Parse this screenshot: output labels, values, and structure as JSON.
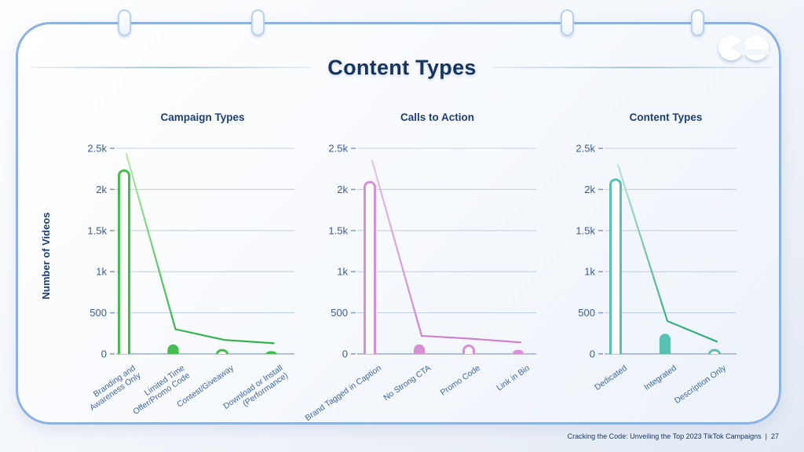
{
  "slide": {
    "title": "Content Types",
    "y_axis_label": "Number of Videos",
    "footer": {
      "text": "Cracking the Code: Unveiling the Top 2023 TikTok Campaigns",
      "separator": "|",
      "page": "27"
    }
  },
  "colors": {
    "panel_border": "#8db2e2",
    "title_navy": "#14355f",
    "chart_title_navy": "#1c3f77",
    "tick_label_blue": "#3a5c96",
    "category_label_blue": "#3f67a0",
    "gridline": "#c4d1e3",
    "axis": "#98aecf",
    "green": "#45bc4f",
    "pink": "#d98fd8",
    "teal": "#57c2b4"
  },
  "chart_data": [
    {
      "type": "bar",
      "title": "Campaign Types",
      "categories": [
        "Branding and Awareness Only",
        "Limited Time Offer/Promo Code",
        "Contest/Giveaway",
        "Download or Install (Performance)"
      ],
      "category_label_lines": [
        [
          "Branding and",
          "Awareness Only"
        ],
        [
          "Limited Time",
          "Offer/Promo Code"
        ],
        [
          "Contest/Giveaway"
        ],
        [
          "Download or Install",
          "(Performance)"
        ]
      ],
      "series": [
        {
          "name": "videos-bars",
          "type": "bar",
          "values": [
            2230,
            110,
            45,
            15
          ],
          "bar_styles": [
            "outline",
            "filled",
            "outline",
            "filled"
          ]
        },
        {
          "name": "trend-line",
          "type": "line",
          "values": [
            2430,
            300,
            170,
            130
          ]
        }
      ],
      "y_ticks": {
        "labels": [
          "2.5k",
          "2k",
          "1.5k",
          "1k",
          "500",
          "0"
        ],
        "values": [
          2500,
          2000,
          1500,
          1000,
          500,
          0
        ]
      },
      "ylim": [
        0,
        2500
      ],
      "grid": true,
      "color": "#45bc4f",
      "line_gradient": [
        "#b7e9a6",
        "#2eb14b"
      ]
    },
    {
      "type": "bar",
      "title": "Calls to Action",
      "categories": [
        "Brand Tagged in Caption",
        "No Strong CTA",
        "Promo Code",
        "Link in Bio"
      ],
      "category_label_lines": [
        [
          "Brand Tagged in Caption"
        ],
        [
          "No Strong CTA"
        ],
        [
          "Promo Code"
        ],
        [
          "Link in Bio"
        ]
      ],
      "series": [
        {
          "name": "videos-bars",
          "type": "bar",
          "values": [
            2090,
            110,
            100,
            45
          ],
          "bar_styles": [
            "outline",
            "filled",
            "outline",
            "filled"
          ]
        },
        {
          "name": "trend-line",
          "type": "line",
          "values": [
            2350,
            220,
            185,
            140
          ]
        }
      ],
      "y_ticks": {
        "labels": [
          "2.5k",
          "2k",
          "1.5k",
          "1k",
          "500",
          "0"
        ],
        "values": [
          2500,
          2000,
          1500,
          1000,
          500,
          0
        ]
      },
      "ylim": [
        0,
        2500
      ],
      "grid": true,
      "color": "#d98fd8",
      "line_gradient": [
        "#e6c2ea",
        "#cf7fd1"
      ]
    },
    {
      "type": "bar",
      "title": "Content Types",
      "categories": [
        "Dedicated",
        "Integrated",
        "Description Only"
      ],
      "category_label_lines": [
        [
          "Dedicated"
        ],
        [
          "Integrated"
        ],
        [
          "Description Only"
        ]
      ],
      "series": [
        {
          "name": "videos-bars",
          "type": "bar",
          "values": [
            2120,
            240,
            45
          ],
          "bar_styles": [
            "outline",
            "filled",
            "outline"
          ]
        },
        {
          "name": "trend-line",
          "type": "line",
          "values": [
            2300,
            400,
            150
          ]
        }
      ],
      "y_ticks": {
        "labels": [
          "2.5k",
          "2k",
          "1.5k",
          "1k",
          "500",
          "0"
        ],
        "values": [
          2500,
          2000,
          1500,
          1000,
          500,
          0
        ]
      },
      "ylim": [
        0,
        2500
      ],
      "grid": true,
      "color": "#57c2b4",
      "line_gradient": [
        "#bfe2d8",
        "#2aa876"
      ]
    }
  ]
}
